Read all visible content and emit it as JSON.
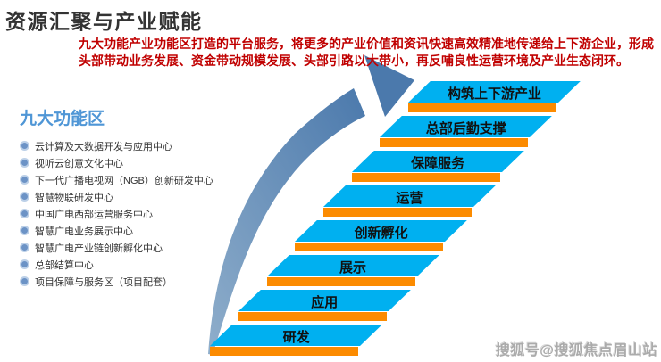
{
  "slide": {
    "title": "资源汇聚与产业赋能"
  },
  "description": {
    "text": "九大功能产业功能区打造的平台服务，将更多的产业价值和资讯快速高效精准地传递给上下游企业，形成头部带动业务发展、资金带动规模发展、头部引路以大带小，再反哺良性运营环境及产业生态闭环。"
  },
  "functional_zones": {
    "heading": "九大功能区",
    "items": [
      "云计算及大数据开发与应用中心",
      "视听云创意文化中心",
      "下一代广播电视网（NGB）创新研发中心",
      "智慧物联研发中心",
      "中国广电西部运营服务中心",
      "智慧广电业务展示中心",
      "智慧广电产业链创新孵化中心",
      "总部结算中心",
      "项目保障与服务区（项目配套）"
    ]
  },
  "staircase": {
    "steps_top_to_bottom": [
      "构筑上下游产业",
      "总部后勤支撑",
      "保障服务",
      "运营",
      "创新孵化",
      "展示",
      "应用",
      "研发"
    ]
  },
  "watermark": {
    "text": "搜狐号@搜狐焦点眉山站"
  },
  "colors": {
    "step_blue": "#00B0F0",
    "step_orange": "#FC8B00",
    "arrow_blue": "#4B79AC",
    "arrow_light": "#8FAECB",
    "heading_blue": "#4F96D6",
    "bullet_blue": "#6C93C6",
    "bullet_ring": "#BCD0E8",
    "description_red": "#C00000",
    "title_color": "#333333",
    "step_label_color": "#111111",
    "list_text_color": "#333333",
    "watermark_gray": "#ABABAB"
  }
}
